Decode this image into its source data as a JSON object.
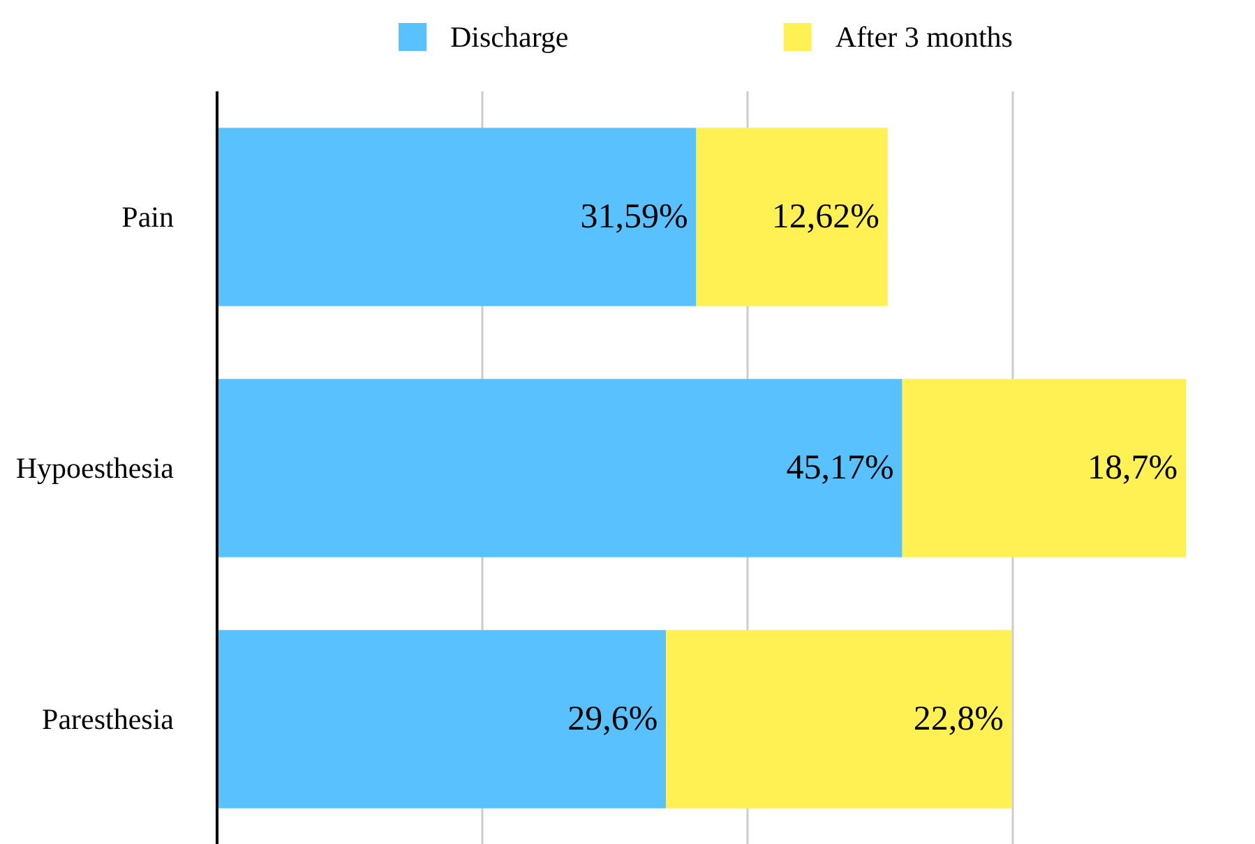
{
  "chart_data": {
    "type": "bar",
    "orientation": "horizontal",
    "stacked": true,
    "categories": [
      "Pain",
      "Hypoesthesia",
      "Paresthesia"
    ],
    "series": [
      {
        "name": "Discharge",
        "color": "#58c1fe",
        "values": [
          31.59,
          45.17,
          29.6
        ],
        "value_labels": [
          "31,59%",
          "45,17%",
          "29,6%"
        ]
      },
      {
        "name": "After 3 months",
        "color": "#fff054",
        "values": [
          12.62,
          18.7,
          22.8
        ],
        "value_labels": [
          "12,62%",
          "18,7%",
          "22,8%"
        ]
      }
    ],
    "xticks": [
      {
        "value": 17.5,
        "label": null
      },
      {
        "value": 35,
        "label": null
      },
      {
        "value": 52.5,
        "label": null
      }
    ],
    "grid": "x",
    "legend": "top",
    "tick_labels": "y"
  }
}
